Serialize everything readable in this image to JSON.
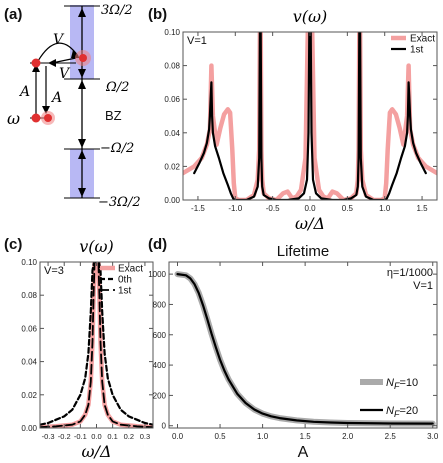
{
  "panels": {
    "a": {
      "label": "(a)",
      "levels": [
        "3Ω/2",
        "Ω/2",
        "BZ",
        "−Ω/2",
        "−3Ω/2"
      ],
      "symbols": [
        "ω",
        "A",
        "A",
        "V",
        "V"
      ]
    }
  },
  "colors": {
    "exact": "#f4a0a0",
    "approx": "#000000",
    "band": "#b8b8f4",
    "dot": "#e03030",
    "nf10": "#aaaaaa",
    "nf20": "#000000"
  },
  "chart_data": [
    {
      "id": "b",
      "panel_label": "(b)",
      "type": "line",
      "title": "v(ω)",
      "xlabel": "ω/Δ",
      "ylabel": "",
      "xlim": [
        -1.7,
        1.7
      ],
      "ylim": [
        0,
        0.1
      ],
      "xticks": [
        -1.5,
        -1.0,
        -0.5,
        0.0,
        0.5,
        1.0,
        1.5
      ],
      "xtick_labels": [
        "-1.5",
        "-1.0",
        "-0.5",
        "0.0",
        "0.5",
        "1.0",
        "1.5"
      ],
      "yticks": [
        0,
        0.02,
        0.04,
        0.06,
        0.08,
        0.1
      ],
      "ytick_labels": [
        "0.00",
        "0.02",
        "0.04",
        "0.06",
        "0.08",
        "0.10"
      ],
      "annotation": "V=1",
      "legend": {
        "position": "top-right",
        "entries": [
          "Exact",
          "1st"
        ]
      },
      "series": [
        {
          "name": "Exact",
          "x": [
            -1.7,
            -1.55,
            -1.45,
            -1.38,
            -1.34,
            -1.32,
            -1.3,
            -1.25,
            -1.2,
            -1.15,
            -1.1,
            -1.07,
            -1.04,
            -1.02,
            -1.0,
            -0.95,
            -0.85,
            -0.75,
            -0.7,
            -0.68,
            -0.67,
            -0.66,
            -0.65,
            -0.64,
            -0.62,
            -0.55,
            -0.45,
            -0.36,
            -0.3,
            -0.24,
            -0.18,
            -0.12,
            -0.06,
            -0.03,
            -0.01,
            0.0,
            0.01,
            0.03,
            0.06,
            0.12,
            0.18,
            0.24,
            0.3,
            0.36,
            0.45,
            0.55,
            0.62,
            0.64,
            0.65,
            0.66,
            0.67,
            0.68,
            0.7,
            0.75,
            0.85,
            0.95,
            1.0,
            1.02,
            1.04,
            1.07,
            1.1,
            1.15,
            1.2,
            1.25,
            1.3,
            1.32,
            1.34,
            1.38,
            1.45,
            1.55,
            1.7
          ],
          "y": [
            0.016,
            0.02,
            0.025,
            0.033,
            0.042,
            0.08,
            0.05,
            0.033,
            0.043,
            0.051,
            0.054,
            0.052,
            0.03,
            0.01,
            0.001,
            0.0,
            0.0,
            0.003,
            0.012,
            0.03,
            0.1,
            0.1,
            0.03,
            0.012,
            0.004,
            0.001,
            0.0,
            0.004,
            0.005,
            0.001,
            0.002,
            0.006,
            0.025,
            0.1,
            0.1,
            0.1,
            0.1,
            0.1,
            0.025,
            0.006,
            0.002,
            0.001,
            0.005,
            0.004,
            0.0,
            0.001,
            0.004,
            0.012,
            0.03,
            0.1,
            0.1,
            0.03,
            0.012,
            0.003,
            0.0,
            0.0,
            0.001,
            0.01,
            0.03,
            0.052,
            0.054,
            0.051,
            0.043,
            0.033,
            0.05,
            0.08,
            0.042,
            0.033,
            0.025,
            0.02,
            0.016
          ]
        },
        {
          "name": "1st",
          "x": [
            -1.55,
            -1.48,
            -1.42,
            -1.38,
            -1.35,
            -1.34,
            -1.33,
            -1.32,
            -1.31,
            -1.3,
            -1.27,
            -1.22,
            -1.16,
            -1.1,
            -1.06,
            -1.03,
            -1.01,
            -1.0,
            -0.95,
            -0.85,
            -0.75,
            -0.7,
            -0.68,
            -0.67,
            -0.66,
            -0.65,
            -0.64,
            -0.62,
            -0.55,
            -0.45,
            -0.3,
            -0.15,
            -0.08,
            -0.04,
            -0.02,
            -0.01,
            0.0,
            0.01,
            0.02,
            0.04,
            0.08,
            0.15,
            0.3,
            0.45,
            0.55,
            0.62,
            0.64,
            0.65,
            0.66,
            0.67,
            0.68,
            0.7,
            0.75,
            0.85,
            0.95,
            1.0,
            1.01,
            1.03,
            1.06,
            1.1,
            1.16,
            1.22,
            1.27,
            1.3,
            1.31,
            1.32,
            1.33,
            1.34,
            1.35,
            1.38,
            1.42,
            1.48,
            1.55
          ],
          "y": [
            0.016,
            0.022,
            0.028,
            0.034,
            0.042,
            0.05,
            0.06,
            0.07,
            0.05,
            0.04,
            0.032,
            0.025,
            0.016,
            0.009,
            0.004,
            0.001,
            0.0,
            0.0,
            0.0,
            0.0,
            0.002,
            0.008,
            0.025,
            0.1,
            0.1,
            0.025,
            0.008,
            0.003,
            0.001,
            0.0,
            0.0,
            0.001,
            0.004,
            0.012,
            0.04,
            0.1,
            0.1,
            0.1,
            0.04,
            0.012,
            0.004,
            0.001,
            0.0,
            0.0,
            0.001,
            0.003,
            0.008,
            0.025,
            0.1,
            0.1,
            0.025,
            0.008,
            0.002,
            0.0,
            0.0,
            0.0,
            0.0,
            0.001,
            0.004,
            0.009,
            0.016,
            0.025,
            0.032,
            0.04,
            0.05,
            0.07,
            0.06,
            0.05,
            0.042,
            0.034,
            0.028,
            0.022,
            0.016
          ]
        }
      ]
    },
    {
      "id": "c",
      "panel_label": "(c)",
      "type": "line",
      "title": "v(ω)",
      "xlabel": "ω/Δ",
      "ylabel": "",
      "xlim": [
        -0.35,
        0.35
      ],
      "ylim": [
        0,
        0.1
      ],
      "xticks": [
        -0.3,
        -0.2,
        -0.1,
        0.0,
        0.1,
        0.2,
        0.3
      ],
      "xtick_labels": [
        "-0.3",
        "-0.2",
        "-0.1",
        "0.0",
        "0.1",
        "0.2",
        "0.3"
      ],
      "yticks": [
        0,
        0.02,
        0.04,
        0.06,
        0.08,
        0.1
      ],
      "ytick_labels": [
        "0.00",
        "0.02",
        "0.04",
        "0.06",
        "0.08",
        "0.10"
      ],
      "annotation": "V=3",
      "legend": {
        "position": "top-right",
        "entries": [
          "Exact",
          "0th",
          "1st"
        ]
      },
      "series": [
        {
          "name": "Exact",
          "x": [
            -0.35,
            -0.25,
            -0.15,
            -0.1,
            -0.07,
            -0.05,
            -0.035,
            -0.025,
            -0.018,
            -0.012,
            0.0,
            0.012,
            0.018,
            0.025,
            0.035,
            0.05,
            0.07,
            0.1,
            0.15,
            0.25,
            0.35
          ],
          "y": [
            0.0005,
            0.001,
            0.002,
            0.004,
            0.008,
            0.014,
            0.028,
            0.052,
            0.08,
            0.1,
            0.1,
            0.1,
            0.08,
            0.052,
            0.028,
            0.014,
            0.008,
            0.004,
            0.002,
            0.001,
            0.0005
          ]
        },
        {
          "name": "0th",
          "x": [
            -0.35,
            -0.3,
            -0.25,
            -0.2,
            -0.15,
            -0.1,
            -0.07,
            -0.05,
            -0.035,
            -0.025,
            -0.015,
            0.0,
            0.015,
            0.025,
            0.035,
            0.05,
            0.07,
            0.1,
            0.15,
            0.2,
            0.25,
            0.3,
            0.35
          ],
          "y": [
            0.002,
            0.003,
            0.005,
            0.007,
            0.011,
            0.02,
            0.03,
            0.045,
            0.07,
            0.095,
            0.1,
            0.1,
            0.1,
            0.095,
            0.07,
            0.045,
            0.03,
            0.02,
            0.011,
            0.007,
            0.005,
            0.003,
            0.002
          ]
        },
        {
          "name": "1st",
          "x": [
            -0.35,
            -0.25,
            -0.15,
            -0.1,
            -0.07,
            -0.05,
            -0.035,
            -0.025,
            -0.018,
            -0.012,
            0.0,
            0.012,
            0.018,
            0.025,
            0.035,
            0.05,
            0.07,
            0.1,
            0.15,
            0.25,
            0.35
          ],
          "y": [
            0.0005,
            0.001,
            0.002,
            0.004,
            0.008,
            0.014,
            0.028,
            0.052,
            0.08,
            0.1,
            0.1,
            0.1,
            0.08,
            0.052,
            0.028,
            0.014,
            0.008,
            0.004,
            0.002,
            0.001,
            0.0005
          ]
        }
      ]
    },
    {
      "id": "d",
      "panel_label": "(d)",
      "type": "line",
      "title": "Lifetime",
      "xlabel": "A",
      "ylabel": "",
      "xlim": [
        -0.1,
        3.05
      ],
      "ylim": [
        -15,
        1080
      ],
      "xticks": [
        0.0,
        0.5,
        1.0,
        1.5,
        2.0,
        2.5,
        3.0
      ],
      "xtick_labels": [
        "0.0",
        "0.5",
        "1.0",
        "1.5",
        "2.0",
        "2.5",
        "3.0"
      ],
      "yticks": [
        0,
        200,
        400,
        600,
        800,
        1000
      ],
      "ytick_labels": [
        "0",
        "200",
        "400",
        "600",
        "800",
        "1000"
      ],
      "annotations": [
        "η=1/1000",
        "V=1"
      ],
      "legend": {
        "position": "bottom-right",
        "entries": [
          "N_F=10",
          "N_F=20"
        ]
      },
      "series": [
        {
          "name": "N_F=10",
          "x": [
            0.0,
            0.1,
            0.15,
            0.2,
            0.25,
            0.3,
            0.35,
            0.4,
            0.45,
            0.5,
            0.55,
            0.6,
            0.7,
            0.8,
            0.9,
            1.0,
            1.1,
            1.2,
            1.4,
            1.6,
            1.8,
            2.0,
            2.5,
            3.0
          ],
          "y": [
            1000,
            992,
            972,
            934,
            874,
            795,
            703,
            608,
            518,
            436,
            365,
            305,
            212,
            150,
            108,
            80,
            62,
            50,
            35,
            26,
            21,
            18,
            15,
            14
          ]
        },
        {
          "name": "N_F=20",
          "x": [
            0.0,
            0.1,
            0.15,
            0.2,
            0.25,
            0.3,
            0.35,
            0.4,
            0.45,
            0.5,
            0.55,
            0.6,
            0.7,
            0.8,
            0.9,
            1.0,
            1.1,
            1.2,
            1.4,
            1.6,
            1.8,
            2.0,
            2.5,
            3.0
          ],
          "y": [
            1000,
            992,
            972,
            934,
            874,
            795,
            703,
            608,
            518,
            436,
            365,
            305,
            212,
            150,
            108,
            80,
            62,
            50,
            35,
            26,
            21,
            18,
            15,
            14
          ]
        }
      ]
    }
  ]
}
